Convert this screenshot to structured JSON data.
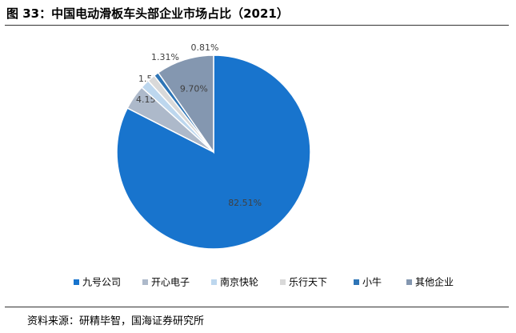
{
  "chart_data": {
    "type": "pie",
    "title": "图 33：中国电动滑板车头部企业市场占比（2021）",
    "categories": [
      "九号公司",
      "开心电子",
      "南京快轮",
      "乐行天下",
      "小牛",
      "其他企业"
    ],
    "values": [
      82.51,
      4.15,
      1.52,
      1.31,
      0.81,
      9.7
    ],
    "value_labels": [
      "82.51%",
      "4.15%",
      "1.52%",
      "1.31%",
      "0.81%",
      "9.70%"
    ],
    "colors": [
      "#1874cd",
      "#adb9ca",
      "#bdd7ee",
      "#d9d9d9",
      "#2e75b6",
      "#8497b0"
    ],
    "legend": "bottom",
    "source": "资料来源：研精毕智，国海证券研究所"
  }
}
